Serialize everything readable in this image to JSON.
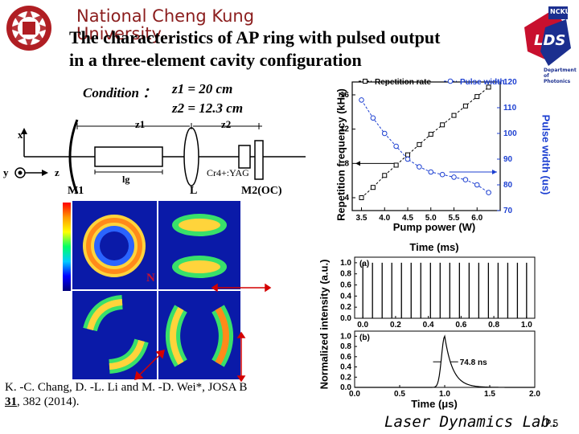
{
  "header": {
    "university": "National Cheng Kung University",
    "title_line1": "The characteristics of AP ring with pulsed output",
    "title_line2": "in a three-element cavity configuration",
    "logo_right_top": "NCKU",
    "logo_right_mid": "LDS",
    "logo_right_bottom": "Department of Photonics"
  },
  "condition": {
    "label": "Condition ：",
    "z1": "z1 = 20 cm",
    "z2": "z2 = 12.3 cm"
  },
  "cavity": {
    "z1_label": "z1",
    "z2_label": "z2",
    "lg_label": "lg",
    "crystal_label": "Cr4+:YAG",
    "m1_label": "M1",
    "lens_label": "L",
    "m2_label": "M2(OC)",
    "x_axis": "x",
    "y_axis": "y",
    "z_axis": "z"
  },
  "patterns": {
    "n_label": "N"
  },
  "chart_data": [
    {
      "type": "line",
      "title": "",
      "xlabel": "Pump power (W)",
      "ylabel": "Repetition frequency (kHz)",
      "y2label": "Pulse width (us)",
      "xlim": [
        3.3,
        6.5
      ],
      "ylim": [
        2.5,
        17.5
      ],
      "y2lim": [
        70,
        120
      ],
      "xticks": [
        "3.5",
        "4.0",
        "4.5",
        "5.0",
        "5.5",
        "6.0"
      ],
      "yticks": [
        "4",
        "8",
        "12",
        "16"
      ],
      "y2ticks": [
        "70",
        "80",
        "90",
        "100",
        "110",
        "120"
      ],
      "legend": [
        "Repetition rate",
        "Pulse width"
      ],
      "series": [
        {
          "name": "Repetition rate",
          "axis": "left",
          "x": [
            3.5,
            3.75,
            4.0,
            4.25,
            4.5,
            4.75,
            5.0,
            5.25,
            5.5,
            5.75,
            6.0,
            6.25
          ],
          "values": [
            4.0,
            5.2,
            6.6,
            7.8,
            9.0,
            10.2,
            11.4,
            12.5,
            13.6,
            14.7,
            15.8,
            16.9
          ]
        },
        {
          "name": "Pulse width",
          "axis": "right",
          "x": [
            3.5,
            3.75,
            4.0,
            4.25,
            4.5,
            4.75,
            5.0,
            5.25,
            5.5,
            5.75,
            6.0,
            6.25
          ],
          "values": [
            113,
            106,
            100,
            95,
            90,
            87,
            85,
            84,
            83,
            82,
            80,
            77
          ]
        }
      ]
    },
    {
      "type": "line",
      "title": "Time (ms)",
      "xlabel": "",
      "ylabel": "Normalized intensity (a.u.)",
      "panel": "(a)",
      "xlim": [
        -0.05,
        1.05
      ],
      "ylim": [
        0,
        1.1
      ],
      "xticks": [
        "0.0",
        "0.2",
        "0.4",
        "0.6",
        "0.8",
        "1.0"
      ],
      "yticks": [
        "0.0",
        "0.2",
        "0.4",
        "0.6",
        "0.8",
        "1.0"
      ],
      "pulse_times": [
        0.0,
        0.059,
        0.118,
        0.177,
        0.236,
        0.295,
        0.354,
        0.413,
        0.472,
        0.531,
        0.59,
        0.649,
        0.708,
        0.767,
        0.826,
        0.885,
        0.944,
        1.0
      ]
    },
    {
      "type": "line",
      "title": "",
      "xlabel": "Time (μs)",
      "ylabel": "",
      "panel": "(b)",
      "annotation": "74.8 ns",
      "xlim": [
        0,
        2.0
      ],
      "ylim": [
        0,
        1.1
      ],
      "xticks": [
        "0.0",
        "0.5",
        "1.0",
        "1.5",
        "2.0"
      ],
      "yticks": [
        "0.0",
        "0.2",
        "0.4",
        "0.6",
        "0.8",
        "1.0"
      ],
      "peak_time": 1.0,
      "peak_value": 1.0
    }
  ],
  "reference": {
    "line1": "K. -C. Chang, D. -L. Li and M. -D. Wei*, JOSA B",
    "volume": "31",
    "rest": ", 382 (2014)."
  },
  "footer": {
    "lab": "Laser Dynamics Lab.",
    "page": "P.5"
  },
  "colors": {
    "university": "#8b1d1d",
    "blue_series": "#1c3fd1",
    "logo_red": "#c8102e",
    "logo_blue": "#1b2f8f"
  }
}
